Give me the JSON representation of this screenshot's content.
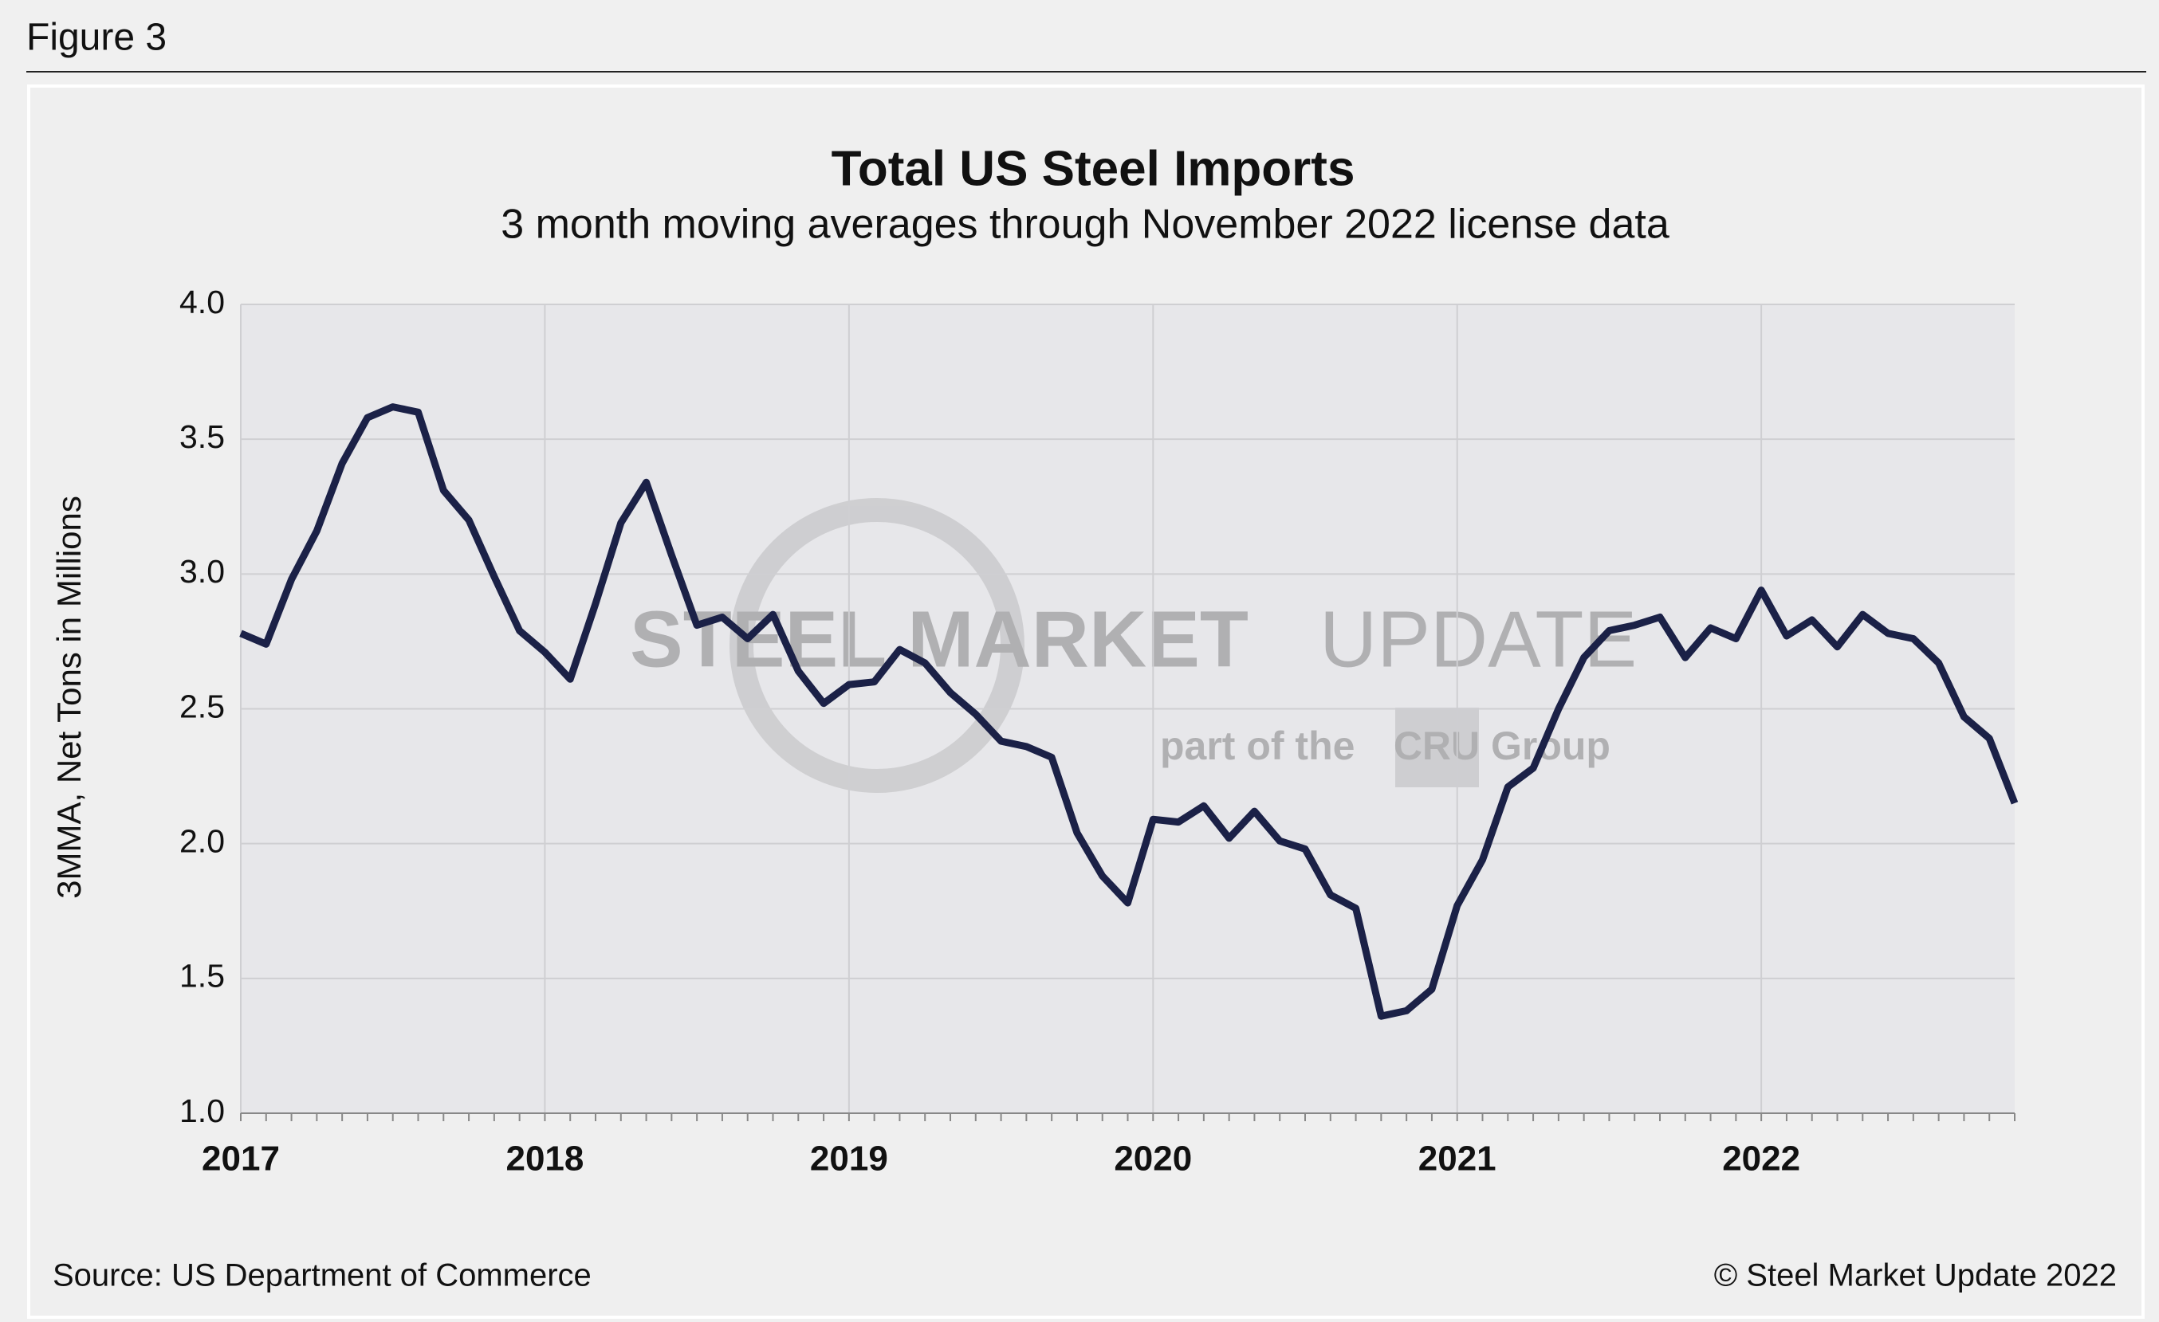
{
  "figure_label": "Figure 3",
  "chart_data": {
    "type": "line",
    "title": "Total US Steel Imports",
    "subtitle": "3 month moving averages through November 2022 license data",
    "y_label": "3MMA, Net Tons in Millions",
    "source": "Source: US Department of Commerce",
    "copyright": "© Steel Market Update 2022",
    "watermark": {
      "bold": "STEEL MARKET",
      "light": "UPDATE",
      "tag_start": "part of the",
      "logo": "CRU",
      "tag_end": "Group"
    },
    "categories": [
      "2017",
      null,
      null,
      null,
      null,
      null,
      null,
      null,
      null,
      null,
      null,
      null,
      "2018",
      null,
      null,
      null,
      null,
      null,
      null,
      null,
      null,
      null,
      null,
      null,
      "2019",
      null,
      null,
      null,
      null,
      null,
      null,
      null,
      null,
      null,
      null,
      null,
      "2020",
      null,
      null,
      null,
      null,
      null,
      null,
      null,
      null,
      null,
      null,
      null,
      "2021",
      null,
      null,
      null,
      null,
      null,
      null,
      null,
      null,
      null,
      null,
      null,
      "2022",
      null,
      null,
      null,
      null,
      null,
      null,
      null,
      null,
      null,
      null
    ],
    "series": [
      {
        "name": "Total US Steel Imports",
        "color": "#1b2147",
        "values": [
          2.78,
          2.74,
          2.98,
          3.16,
          3.41,
          3.58,
          3.62,
          3.6,
          3.31,
          3.2,
          2.99,
          2.79,
          2.71,
          2.61,
          2.89,
          3.19,
          3.34,
          3.07,
          2.81,
          2.84,
          2.76,
          2.85,
          2.64,
          2.52,
          2.59,
          2.6,
          2.72,
          2.67,
          2.56,
          2.48,
          2.38,
          2.36,
          2.32,
          2.04,
          1.88,
          1.78,
          2.09,
          2.08,
          2.14,
          2.02,
          2.12,
          2.01,
          1.98,
          1.81,
          1.76,
          1.36,
          1.38,
          1.46,
          1.77,
          1.94,
          2.21,
          2.28,
          2.5,
          2.69,
          2.79,
          2.81,
          2.84,
          2.69,
          2.8,
          2.76,
          2.94,
          2.77,
          2.83,
          2.73,
          2.85,
          2.78,
          2.76,
          2.67,
          2.47,
          2.39,
          2.15
        ]
      }
    ],
    "ylim": [
      1.0,
      4.0
    ],
    "yticks": [
      {
        "value": 1,
        "label": "1.0"
      },
      1.5,
      {
        "value": 2,
        "label": "2.0"
      },
      2.5,
      {
        "value": 3,
        "label": "3.0"
      },
      3.5,
      {
        "value": 4,
        "label": "4.0"
      }
    ],
    "grid": true
  }
}
